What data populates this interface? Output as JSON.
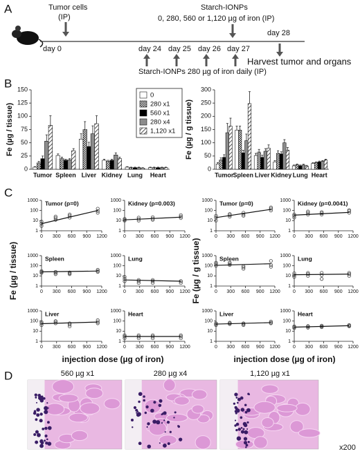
{
  "panel_labels": [
    "A",
    "B",
    "C",
    "D"
  ],
  "timeline": {
    "tumor_cells": "Tumor cells",
    "tumor_route": "(IP)",
    "injection_title": "Starch-IONPs",
    "injection_doses": "0, 280, 560 or 1,120 µg of iron (IP)",
    "days": [
      "day 0",
      "day 24",
      "day 25",
      "day 26",
      "day 27",
      "day 28"
    ],
    "harvest": "Harvest tumor and organs",
    "daily": "Starch-IONPs 280 µg of iron daily (IP)"
  },
  "panel_c": {
    "y_labels": [
      "Fe (µg / tissue)",
      "Fe (µg / g tissue)"
    ],
    "x_labels": [
      "injection dose (µg of iron)",
      "injection dose (µg of iron)"
    ]
  },
  "histology": {
    "labels": [
      "560 µg x1",
      "280 µg x4",
      "1,120 µg x1"
    ],
    "magnification": "x200"
  },
  "chart_data": [
    {
      "type": "bar",
      "y_label": "Fe (µg / tissue)",
      "categories": [
        "Tumor",
        "Spleen",
        "Liver",
        "Kidney",
        "Lung",
        "Heart"
      ],
      "ylim": [
        0,
        150
      ],
      "yticks": [
        0,
        25,
        50,
        75,
        100,
        125,
        150
      ],
      "legend": "upper right",
      "series": [
        {
          "name": "0",
          "color": "#ffffff",
          "pattern": "none",
          "values": [
            4,
            26,
            57,
            17,
            4,
            3
          ],
          "errors": [
            1,
            3,
            10,
            2,
            1,
            1
          ]
        },
        {
          "name": "280 x1",
          "color": "#ffffff",
          "pattern": "checker",
          "values": [
            12,
            20,
            75,
            15,
            3,
            3
          ],
          "errors": [
            3,
            3,
            15,
            2,
            1,
            1
          ]
        },
        {
          "name": "560 x1",
          "color": "#000000",
          "pattern": "none",
          "values": [
            20,
            17,
            43,
            17,
            3,
            3
          ],
          "errors": [
            5,
            2,
            8,
            2,
            1,
            1
          ]
        },
        {
          "name": "280 x4",
          "color": "#8c8c8c",
          "pattern": "none",
          "values": [
            53,
            18,
            67,
            27,
            3,
            3
          ],
          "errors": [
            12,
            2,
            15,
            4,
            1,
            1
          ]
        },
        {
          "name": "1,120 x1",
          "color": "#ffffff",
          "pattern": "hatch",
          "values": [
            83,
            35,
            86,
            20,
            2,
            3
          ],
          "errors": [
            18,
            4,
            15,
            3,
            1,
            1
          ]
        }
      ]
    },
    {
      "type": "bar",
      "y_label": "Fe (µg / g tissue)",
      "categories": [
        "Tumor",
        "Spleen",
        "Liver",
        "Kidney",
        "Lung",
        "Heart"
      ],
      "ylim": [
        0,
        300
      ],
      "yticks": [
        0,
        50,
        100,
        150,
        200,
        250,
        300
      ],
      "series": [
        {
          "name": "0",
          "color": "#ffffff",
          "pattern": "none",
          "values": [
            20,
            148,
            52,
            28,
            13,
            22
          ],
          "errors": [
            5,
            15,
            8,
            5,
            3,
            3
          ]
        },
        {
          "name": "280 x1",
          "color": "#ffffff",
          "pattern": "checker",
          "values": [
            35,
            148,
            65,
            60,
            17,
            25
          ],
          "errors": [
            8,
            15,
            10,
            10,
            3,
            3
          ]
        },
        {
          "name": "560 x1",
          "color": "#000000",
          "pattern": "none",
          "values": [
            45,
            62,
            45,
            58,
            13,
            28
          ],
          "errors": [
            10,
            10,
            8,
            8,
            3,
            3
          ]
        },
        {
          "name": "280 x4",
          "color": "#8c8c8c",
          "pattern": "none",
          "values": [
            138,
            108,
            68,
            100,
            16,
            30
          ],
          "errors": [
            35,
            25,
            10,
            12,
            3,
            3
          ]
        },
        {
          "name": "1,120 x1",
          "color": "#ffffff",
          "pattern": "hatch",
          "values": [
            163,
            248,
            80,
            72,
            12,
            35
          ],
          "errors": [
            30,
            45,
            12,
            10,
            3,
            3
          ]
        }
      ]
    },
    {
      "type": "scatter",
      "title": "Tumor (p=0)",
      "log_y": true,
      "color": "#444444",
      "xlim": [
        0,
        1200
      ],
      "xticks": [
        0,
        300,
        600,
        900,
        1200
      ],
      "ylim": [
        1,
        1000
      ],
      "yticks": [
        1,
        10,
        100,
        1000
      ],
      "x": [
        0,
        0,
        0,
        280,
        280,
        280,
        560,
        560,
        560,
        1120,
        1120,
        1120
      ],
      "y": [
        3,
        5,
        8,
        12,
        18,
        25,
        20,
        30,
        40,
        60,
        90,
        150
      ],
      "fit": {
        "x": [
          0,
          1120
        ],
        "y": [
          5,
          100
        ]
      }
    },
    {
      "type": "scatter",
      "title": "Kidney (p=0.003)",
      "log_y": true,
      "color": "#444444",
      "xlim": [
        0,
        1200
      ],
      "xticks": [
        0,
        300,
        600,
        900,
        1200
      ],
      "ylim": [
        1,
        1000
      ],
      "yticks": [
        1,
        10,
        100,
        1000
      ],
      "x": [
        0,
        0,
        0,
        280,
        280,
        280,
        560,
        560,
        560,
        1120,
        1120,
        1120
      ],
      "y": [
        10,
        12,
        15,
        10,
        14,
        20,
        12,
        16,
        22,
        18,
        25,
        35
      ],
      "fit": {
        "x": [
          0,
          1120
        ],
        "y": [
          12,
          22
        ]
      }
    },
    {
      "type": "scatter",
      "title": "Spleen",
      "log_y": true,
      "color": "#444444",
      "xlim": [
        0,
        1200
      ],
      "xticks": [
        0,
        300,
        600,
        900,
        1200
      ],
      "ylim": [
        1,
        1000
      ],
      "yticks": [
        1,
        10,
        100,
        1000
      ],
      "x": [
        0,
        0,
        0,
        280,
        280,
        280,
        560,
        560,
        560,
        1120,
        1120,
        1120
      ],
      "y": [
        20,
        25,
        30,
        15,
        20,
        25,
        15,
        18,
        22,
        25,
        30,
        40
      ],
      "fit": {
        "x": [
          0,
          1120
        ],
        "y": [
          25,
          30
        ]
      }
    },
    {
      "type": "scatter",
      "title": "Lung",
      "log_y": true,
      "color": "#444444",
      "xlim": [
        0,
        1200
      ],
      "xticks": [
        0,
        300,
        600,
        900,
        1200
      ],
      "ylim": [
        1,
        1000
      ],
      "yticks": [
        1,
        10,
        100,
        1000
      ],
      "x": [
        0,
        0,
        0,
        280,
        280,
        280,
        560,
        560,
        560,
        1120,
        1120,
        1120
      ],
      "y": [
        3,
        5,
        8,
        2,
        3,
        4,
        2,
        3,
        4,
        2,
        3,
        3
      ],
      "fit": {
        "x": [
          0,
          1120
        ],
        "y": [
          4,
          3
        ]
      }
    },
    {
      "type": "scatter",
      "title": "Liver",
      "log_y": true,
      "color": "#444444",
      "xlim": [
        0,
        1200
      ],
      "xticks": [
        0,
        300,
        600,
        900,
        1200
      ],
      "ylim": [
        1,
        1000
      ],
      "yticks": [
        1,
        10,
        100,
        1000
      ],
      "x": [
        0,
        0,
        0,
        280,
        280,
        280,
        560,
        560,
        560,
        1120,
        1120,
        1120
      ],
      "y": [
        40,
        60,
        80,
        60,
        80,
        100,
        30,
        45,
        60,
        60,
        80,
        120
      ],
      "fit": {
        "x": [
          0,
          1120
        ],
        "y": [
          55,
          80
        ]
      }
    },
    {
      "type": "scatter",
      "title": "Heart",
      "log_y": true,
      "color": "#444444",
      "xlim": [
        0,
        1200
      ],
      "xticks": [
        0,
        300,
        600,
        900,
        1200
      ],
      "ylim": [
        1,
        1000
      ],
      "yticks": [
        1,
        10,
        100,
        1000
      ],
      "x": [
        0,
        0,
        0,
        280,
        280,
        280,
        560,
        560,
        560,
        1120,
        1120,
        1120
      ],
      "y": [
        2,
        3,
        4,
        2,
        3,
        4,
        2,
        3,
        4,
        2,
        3,
        4
      ],
      "fit": {
        "x": [
          0,
          1120
        ],
        "y": [
          3,
          3
        ]
      }
    },
    {
      "type": "scatter",
      "title": "Tumor (p=0)",
      "log_y": true,
      "color": "#444444",
      "xlim": [
        0,
        1200
      ],
      "xticks": [
        0,
        300,
        600,
        900,
        1200
      ],
      "ylim": [
        1,
        1000
      ],
      "yticks": [
        1,
        10,
        100,
        1000
      ],
      "x": [
        0,
        0,
        0,
        280,
        280,
        280,
        560,
        560,
        560,
        1120,
        1120,
        1120
      ],
      "y": [
        10,
        20,
        30,
        25,
        35,
        45,
        30,
        40,
        60,
        100,
        150,
        200
      ],
      "fit": {
        "x": [
          0,
          1120
        ],
        "y": [
          20,
          130
        ]
      }
    },
    {
      "type": "scatter",
      "title": "Kidney (p=0.0041)",
      "log_y": true,
      "color": "#444444",
      "xlim": [
        0,
        1200
      ],
      "xticks": [
        0,
        300,
        600,
        900,
        1200
      ],
      "ylim": [
        1,
        1000
      ],
      "yticks": [
        1,
        10,
        100,
        1000
      ],
      "x": [
        0,
        0,
        0,
        280,
        280,
        280,
        560,
        560,
        560,
        1120,
        1120,
        1120
      ],
      "y": [
        20,
        30,
        40,
        40,
        60,
        80,
        40,
        55,
        70,
        60,
        90,
        110
      ],
      "fit": {
        "x": [
          0,
          1120
        ],
        "y": [
          35,
          65
        ]
      }
    },
    {
      "type": "scatter",
      "title": "Spleen",
      "log_y": true,
      "color": "#444444",
      "xlim": [
        0,
        1200
      ],
      "xticks": [
        0,
        300,
        600,
        900,
        1200
      ],
      "ylim": [
        1,
        1000
      ],
      "yticks": [
        1,
        10,
        100,
        1000
      ],
      "x": [
        0,
        0,
        0,
        280,
        280,
        280,
        560,
        560,
        560,
        1120,
        1120,
        1120
      ],
      "y": [
        100,
        150,
        200,
        120,
        150,
        200,
        50,
        70,
        90,
        80,
        120,
        300
      ],
      "fit": {
        "x": [
          0,
          1120
        ],
        "y": [
          110,
          160
        ]
      }
    },
    {
      "type": "scatter",
      "title": "Lung",
      "log_y": true,
      "color": "#444444",
      "xlim": [
        0,
        1200
      ],
      "xticks": [
        0,
        300,
        600,
        900,
        1200
      ],
      "ylim": [
        1,
        1000
      ],
      "yticks": [
        1,
        10,
        100,
        1000
      ],
      "x": [
        0,
        0,
        0,
        280,
        280,
        280,
        560,
        560,
        560,
        1120,
        1120,
        1120
      ],
      "y": [
        8,
        12,
        18,
        10,
        15,
        20,
        5,
        12,
        20,
        10,
        15,
        20
      ],
      "fit": {
        "x": [
          0,
          1120
        ],
        "y": [
          13,
          15
        ]
      }
    },
    {
      "type": "scatter",
      "title": "Liver",
      "log_y": true,
      "color": "#444444",
      "xlim": [
        0,
        1200
      ],
      "xticks": [
        0,
        300,
        600,
        900,
        1200
      ],
      "ylim": [
        1,
        1000
      ],
      "yticks": [
        1,
        10,
        100,
        1000
      ],
      "x": [
        0,
        0,
        0,
        280,
        280,
        280,
        560,
        560,
        560,
        1120,
        1120,
        1120
      ],
      "y": [
        40,
        50,
        60,
        50,
        60,
        70,
        40,
        50,
        60,
        60,
        70,
        90
      ],
      "fit": {
        "x": [
          0,
          1120
        ],
        "y": [
          50,
          70
        ]
      }
    },
    {
      "type": "scatter",
      "title": "Heart",
      "log_y": true,
      "color": "#444444",
      "xlim": [
        0,
        1200
      ],
      "xticks": [
        0,
        300,
        600,
        900,
        1200
      ],
      "ylim": [
        1,
        1000
      ],
      "yticks": [
        1,
        10,
        100,
        1000
      ],
      "x": [
        0,
        0,
        0,
        280,
        280,
        280,
        560,
        560,
        560,
        1120,
        1120,
        1120
      ],
      "y": [
        20,
        25,
        30,
        22,
        28,
        32,
        25,
        30,
        35,
        30,
        35,
        40
      ],
      "fit": {
        "x": [
          0,
          1120
        ],
        "y": [
          25,
          35
        ]
      }
    }
  ]
}
